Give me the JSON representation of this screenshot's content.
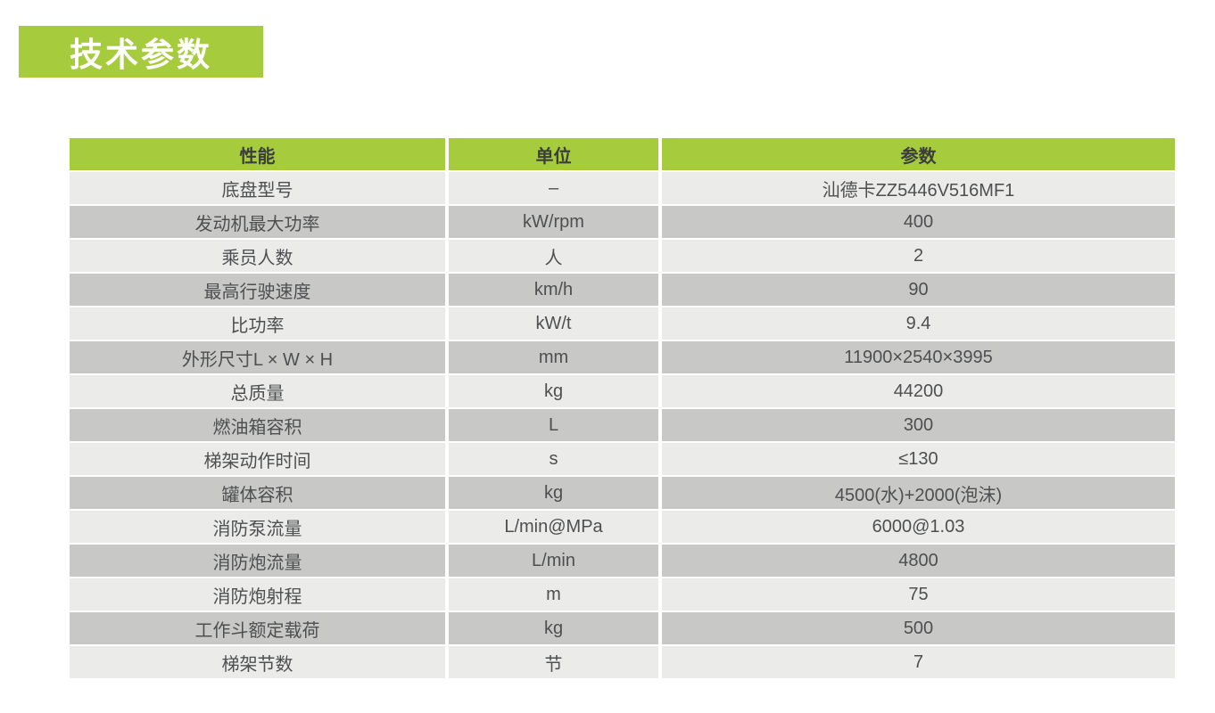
{
  "title_badge": {
    "label": "技术参数"
  },
  "colors": {
    "accent_green": "#a6cb3c",
    "row_light": "#ebebe9",
    "row_dark": "#c8c8c6",
    "header_text": "#3b3d3f",
    "cell_text": "#4d4f51",
    "badge_text": "#ffffff",
    "page_bg": "#ffffff"
  },
  "table": {
    "headers": [
      "性能",
      "单位",
      "参数"
    ],
    "rows": [
      {
        "name": "底盘型号",
        "unit": "–",
        "value": "汕德卡ZZ5446V516MF1"
      },
      {
        "name": "发动机最大功率",
        "unit": "kW/rpm",
        "value": "400"
      },
      {
        "name": "乘员人数",
        "unit": "人",
        "value": "2"
      },
      {
        "name": "最高行驶速度",
        "unit": "km/h",
        "value": "90"
      },
      {
        "name": "比功率",
        "unit": "kW/t",
        "value": "9.4"
      },
      {
        "name": "外形尺寸L × W × H",
        "unit": "mm",
        "value": "11900×2540×3995"
      },
      {
        "name": "总质量",
        "unit": "kg",
        "value": "44200"
      },
      {
        "name": "燃油箱容积",
        "unit": "L",
        "value": "300"
      },
      {
        "name": "梯架动作时间",
        "unit": "s",
        "value": "≤130"
      },
      {
        "name": "罐体容积",
        "unit": "kg",
        "value": "4500(水)+2000(泡沫)"
      },
      {
        "name": "消防泵流量",
        "unit": "L/min@MPa",
        "value": "6000@1.03"
      },
      {
        "name": "消防炮流量",
        "unit": "L/min",
        "value": "4800"
      },
      {
        "name": "消防炮射程",
        "unit": "m",
        "value": "75"
      },
      {
        "name": "工作斗额定载荷",
        "unit": "kg",
        "value": "500"
      },
      {
        "name": "梯架节数",
        "unit": "节",
        "value": "7"
      }
    ]
  }
}
